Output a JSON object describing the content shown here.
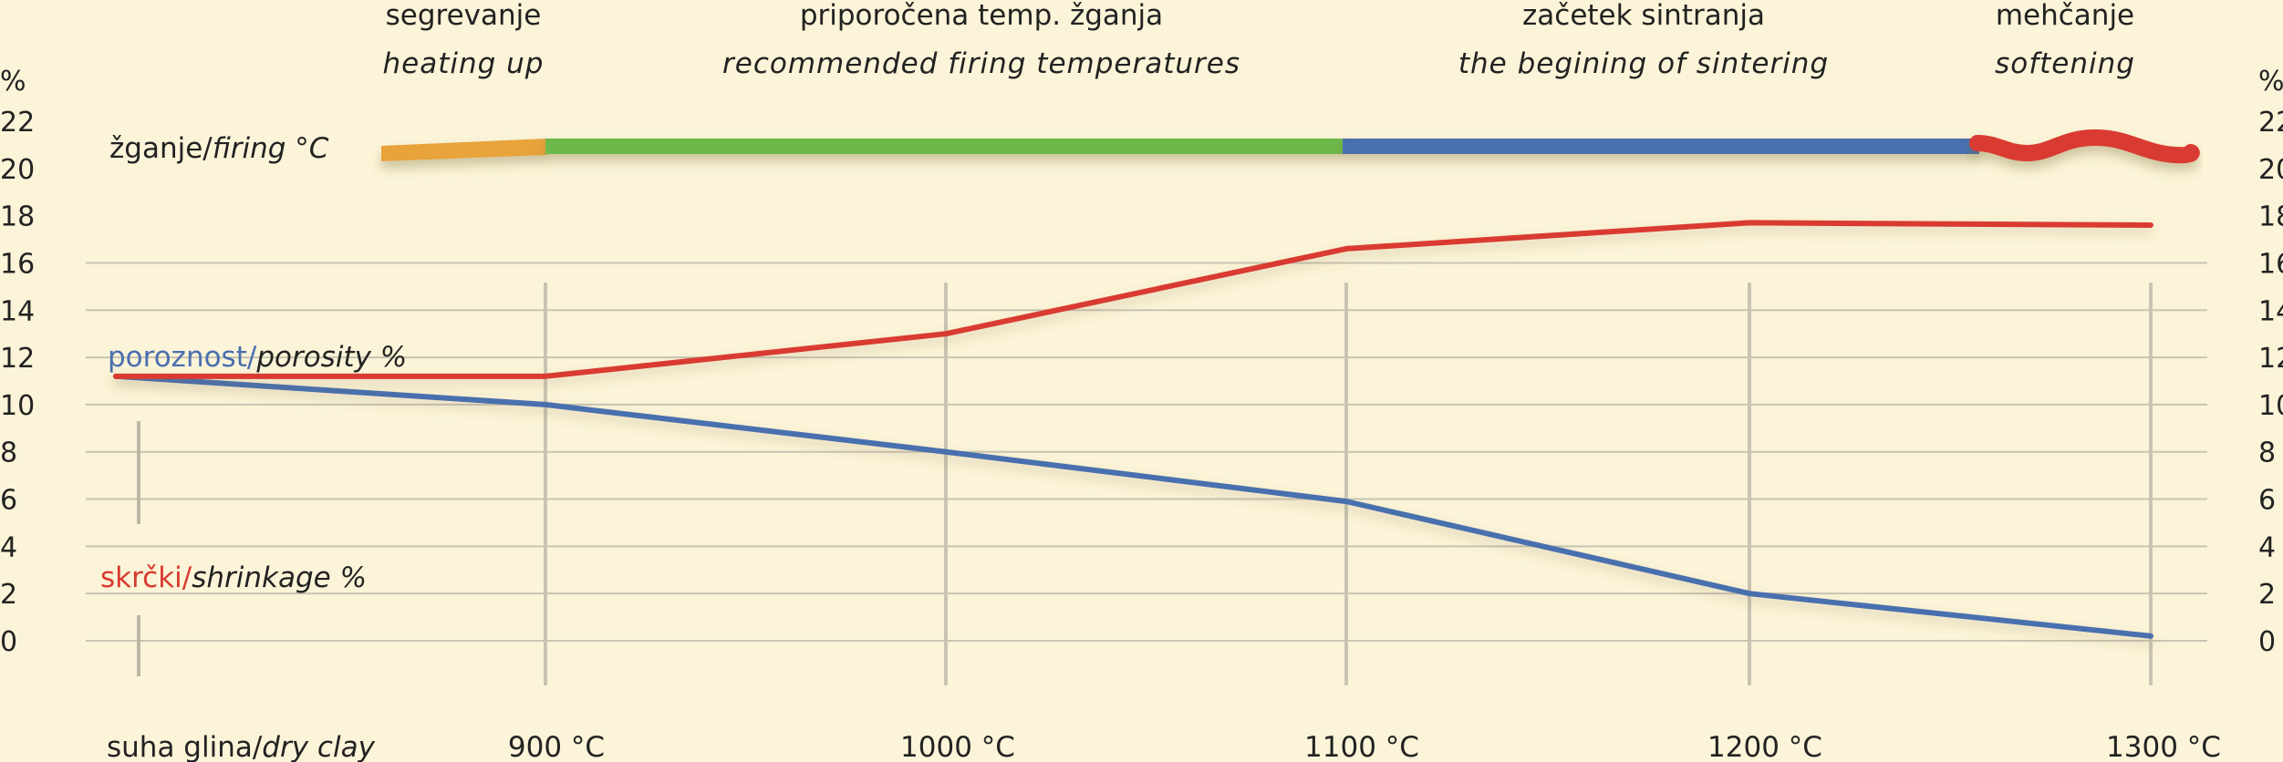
{
  "chart_data": {
    "type": "line",
    "x_ticks": [
      "suha glina/dry clay",
      "900 °C",
      "1000 °C",
      "1100 °C",
      "1200 °C",
      "1300 °C"
    ],
    "x_tick_parts": [
      {
        "main": "suha glina/",
        "italic": "dry clay"
      },
      {
        "main": "900 °C",
        "italic": ""
      },
      {
        "main": "1000 °C",
        "italic": ""
      },
      {
        "main": "1100 °C",
        "italic": ""
      },
      {
        "main": "1200 °C",
        "italic": ""
      },
      {
        "main": "1300 °C",
        "italic": ""
      }
    ],
    "y_unit": "%",
    "y_ticks": [
      0,
      2,
      4,
      6,
      8,
      10,
      12,
      14,
      16,
      18,
      20,
      22
    ],
    "ylim": [
      0,
      22
    ],
    "grid": true,
    "series": [
      {
        "name": "poroznost/porosity %",
        "name_main": "poroznost/",
        "name_italic": "porosity %",
        "color": "#4a6fae",
        "values": [
          11.2,
          10.0,
          8.0,
          5.9,
          2.0,
          0.2
        ]
      },
      {
        "name": "skrčki/shrinkage %",
        "name_main": "skrčki/",
        "name_italic": "shrinkage %",
        "color": "#d93a30",
        "values": [
          11.2,
          11.2,
          13.0,
          16.6,
          17.7,
          17.6
        ]
      }
    ],
    "firing": {
      "label_main": "žganje/",
      "label_italic": "firing °C",
      "stages": [
        {
          "title": "segrevanje",
          "subtitle": "heating up",
          "color": "#e8a33a",
          "from": "dry clay",
          "to": 900
        },
        {
          "title": "priporočena temp. žganja",
          "subtitle": "recommended firing temperatures",
          "color": "#6cb84a",
          "from": 900,
          "to": 1100
        },
        {
          "title": "začetek sintranja",
          "subtitle": "the begining of sintering",
          "color": "#4a6fae",
          "from": 1100,
          "to": 1260
        },
        {
          "title": "mehčanje",
          "subtitle": "softening",
          "color": "#d93a30",
          "from": 1260,
          "to": 1300
        }
      ]
    }
  }
}
